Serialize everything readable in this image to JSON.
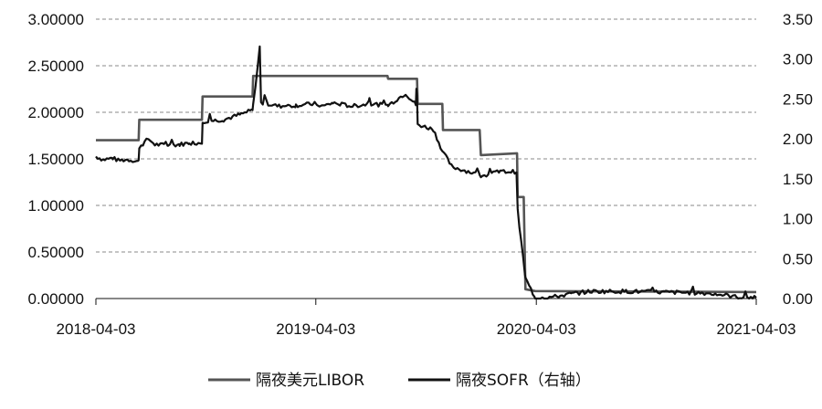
{
  "chart_data": {
    "type": "line",
    "title": "",
    "xlabel": "",
    "x_ticks": [
      "2018-04-03",
      "2019-04-03",
      "2020-04-03",
      "2021-04-03"
    ],
    "xlim": [
      "2018-04-03",
      "2021-04-03"
    ],
    "y_left": {
      "range": [
        0,
        3
      ],
      "ticks": [
        "0.00000",
        "0.50000",
        "1.00000",
        "1.50000",
        "2.00000",
        "2.50000",
        "3.00000"
      ]
    },
    "y_right": {
      "range": [
        0,
        3.5
      ],
      "ticks": [
        "0.00",
        "0.50",
        "1.00",
        "1.50",
        "2.00",
        "2.50",
        "3.00",
        "3.50"
      ]
    },
    "grid": "horizontal dashed",
    "legend_placement": "bottom",
    "series": [
      {
        "name": "隔夜美元LIBOR",
        "axis": "left",
        "color": "#555555",
        "points": [
          [
            "2018-04-03",
            1.7
          ],
          [
            "2018-06-13",
            1.7
          ],
          [
            "2018-06-14",
            1.92
          ],
          [
            "2018-09-26",
            1.92
          ],
          [
            "2018-09-27",
            2.17
          ],
          [
            "2018-12-19",
            2.17
          ],
          [
            "2018-12-20",
            2.39
          ],
          [
            "2019-07-31",
            2.39
          ],
          [
            "2019-08-01",
            2.36
          ],
          [
            "2019-09-18",
            2.36
          ],
          [
            "2019-09-19",
            2.09
          ],
          [
            "2019-10-30",
            2.09
          ],
          [
            "2019-10-31",
            1.81
          ],
          [
            "2019-12-31",
            1.81
          ],
          [
            "2020-01-02",
            1.54
          ],
          [
            "2020-03-02",
            1.56
          ],
          [
            "2020-03-03",
            1.09
          ],
          [
            "2020-03-13",
            1.09
          ],
          [
            "2020-03-16",
            0.1
          ],
          [
            "2020-04-01",
            0.08
          ],
          [
            "2021-04-03",
            0.07
          ]
        ]
      },
      {
        "name": "隔夜SOFR（右轴）",
        "axis": "right",
        "color": "#111111",
        "points": [
          [
            "2018-04-03",
            1.78
          ],
          [
            "2018-04-15",
            1.74
          ],
          [
            "2018-05-01",
            1.76
          ],
          [
            "2018-05-10",
            1.73
          ],
          [
            "2018-05-25",
            1.74
          ],
          [
            "2018-06-13",
            1.72
          ],
          [
            "2018-06-14",
            1.9
          ],
          [
            "2018-06-29",
            2.0
          ],
          [
            "2018-07-10",
            1.93
          ],
          [
            "2018-08-01",
            1.92
          ],
          [
            "2018-08-20",
            1.93
          ],
          [
            "2018-09-05",
            1.95
          ],
          [
            "2018-09-26",
            1.95
          ],
          [
            "2018-09-27",
            2.22
          ],
          [
            "2018-10-15",
            2.23
          ],
          [
            "2018-11-01",
            2.24
          ],
          [
            "2018-11-30",
            2.31
          ],
          [
            "2018-12-19",
            2.36
          ],
          [
            "2018-12-20",
            2.42
          ],
          [
            "2018-12-31",
            3.15
          ],
          [
            "2019-01-02",
            2.45
          ],
          [
            "2019-02-01",
            2.41
          ],
          [
            "2019-03-01",
            2.42
          ],
          [
            "2019-04-01",
            2.44
          ],
          [
            "2019-04-15",
            2.41
          ],
          [
            "2019-05-01",
            2.45
          ],
          [
            "2019-06-03",
            2.41
          ],
          [
            "2019-07-01",
            2.44
          ],
          [
            "2019-07-31",
            2.42
          ],
          [
            "2019-08-01",
            2.42
          ],
          [
            "2019-08-30",
            2.57
          ],
          [
            "2019-09-16",
            2.43
          ],
          [
            "2019-09-17",
            2.63
          ],
          [
            "2019-09-18",
            2.53
          ],
          [
            "2019-09-19",
            2.18
          ],
          [
            "2019-10-15",
            2.12
          ],
          [
            "2019-10-30",
            1.85
          ],
          [
            "2019-11-15",
            1.65
          ],
          [
            "2019-12-31",
            1.55
          ],
          [
            "2020-01-02",
            1.53
          ],
          [
            "2020-02-03",
            1.59
          ],
          [
            "2020-03-01",
            1.59
          ],
          [
            "2020-03-03",
            1.1
          ],
          [
            "2020-03-16",
            0.25
          ],
          [
            "2020-04-01",
            0.01
          ],
          [
            "2020-05-01",
            0.02
          ],
          [
            "2020-06-01",
            0.06
          ],
          [
            "2020-07-01",
            0.09
          ],
          [
            "2020-09-01",
            0.09
          ],
          [
            "2020-11-01",
            0.08
          ],
          [
            "2021-01-04",
            0.07
          ],
          [
            "2021-02-15",
            0.04
          ],
          [
            "2021-03-01",
            0.02
          ],
          [
            "2021-04-03",
            0.01
          ]
        ]
      }
    ]
  }
}
